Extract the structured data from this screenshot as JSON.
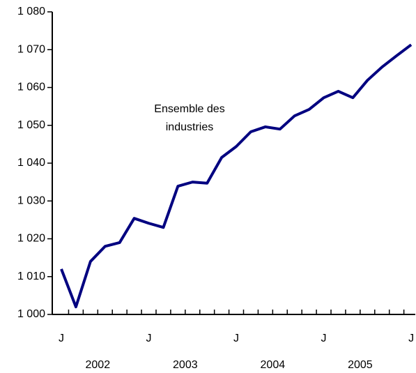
{
  "chart_data": {
    "type": "line",
    "annotation": [
      "Ensemble des",
      "industries"
    ],
    "categories": [
      "J",
      null,
      null,
      null,
      null,
      null,
      "J",
      null,
      null,
      null,
      null,
      null,
      "J",
      null,
      null,
      null,
      null,
      null,
      "J",
      null,
      null,
      null,
      null,
      null,
      "J"
    ],
    "x_group_labels": [
      "2002",
      "2003",
      "2004",
      "2005"
    ],
    "series": [
      {
        "color": "#000080",
        "values": [
          1012,
          1002,
          1014,
          1018,
          1019,
          1025.4,
          1024.1,
          1023,
          1033.9,
          1035,
          1034.7,
          1041.5,
          1044.4,
          1048.3,
          1049.6,
          1049,
          1052.5,
          1054.2,
          1057.3,
          1059,
          1057.3,
          1061.9,
          1065.4,
          1068.4,
          1071.3
        ]
      }
    ],
    "ylim": [
      1000,
      1080
    ],
    "yticks": [
      {
        "value": 1000,
        "label": "1 000"
      },
      {
        "value": 1010,
        "label": "1 010"
      },
      {
        "value": 1020,
        "label": "1 020"
      },
      {
        "value": 1030,
        "label": "1 030"
      },
      {
        "value": 1040,
        "label": "1 040"
      },
      {
        "value": 1050,
        "label": "1 050"
      },
      {
        "value": 1060,
        "label": "1 060"
      },
      {
        "value": 1070,
        "label": "1 070"
      },
      {
        "value": 1080,
        "label": "1 080"
      }
    ],
    "grid": false
  }
}
